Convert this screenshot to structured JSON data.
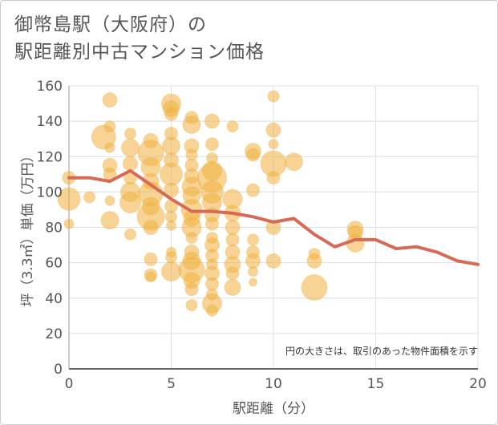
{
  "title_line1": "御幣島駅（大阪府）の",
  "title_line2": "駅距離別中古マンション価格",
  "chart_data": {
    "type": "scatter",
    "xlabel": "駅距離（分）",
    "ylabel": "坪（3.3㎡）単価（万円）",
    "xlim": [
      0,
      20
    ],
    "ylim": [
      0,
      160
    ],
    "x_ticks": [
      "0",
      "5",
      "10",
      "15",
      "20"
    ],
    "y_ticks": [
      "0",
      "20",
      "40",
      "60",
      "80",
      "100",
      "120",
      "140",
      "160"
    ],
    "annotation": "円の大きさは、取引のあった物件面積を示す",
    "grid": true,
    "colors": {
      "bubble": "#f0b040",
      "line": "#d76a55",
      "grid": "#d8e0e8"
    },
    "bubbles": [
      {
        "x": 0,
        "y": 108,
        "s": 8
      },
      {
        "x": 0,
        "y": 96,
        "s": 14
      },
      {
        "x": 0,
        "y": 82,
        "s": 6
      },
      {
        "x": 1,
        "y": 97,
        "s": 7
      },
      {
        "x": 2,
        "y": 152,
        "s": 9
      },
      {
        "x": 2,
        "y": 137,
        "s": 7
      },
      {
        "x": 2,
        "y": 125,
        "s": 6
      },
      {
        "x": 2,
        "y": 115,
        "s": 9
      },
      {
        "x": 2,
        "y": 110,
        "s": 8
      },
      {
        "x": 2,
        "y": 95,
        "s": 6
      },
      {
        "x": 2,
        "y": 84,
        "s": 11
      },
      {
        "x": 1.7,
        "y": 131,
        "s": 15
      },
      {
        "x": 3,
        "y": 133,
        "s": 7
      },
      {
        "x": 3,
        "y": 125,
        "s": 11
      },
      {
        "x": 3,
        "y": 116,
        "s": 9
      },
      {
        "x": 3,
        "y": 108,
        "s": 8
      },
      {
        "x": 3,
        "y": 100,
        "s": 12
      },
      {
        "x": 3,
        "y": 94,
        "s": 13
      },
      {
        "x": 3,
        "y": 76,
        "s": 7
      },
      {
        "x": 4,
        "y": 129,
        "s": 9
      },
      {
        "x": 4,
        "y": 122,
        "s": 16
      },
      {
        "x": 4,
        "y": 114,
        "s": 12
      },
      {
        "x": 4,
        "y": 106,
        "s": 10
      },
      {
        "x": 4,
        "y": 99,
        "s": 15
      },
      {
        "x": 4,
        "y": 92,
        "s": 11
      },
      {
        "x": 4,
        "y": 86,
        "s": 17
      },
      {
        "x": 4,
        "y": 80,
        "s": 9
      },
      {
        "x": 4,
        "y": 62,
        "s": 8
      },
      {
        "x": 4,
        "y": 53,
        "s": 8
      },
      {
        "x": 4,
        "y": 52,
        "s": 6
      },
      {
        "x": 5,
        "y": 150,
        "s": 12
      },
      {
        "x": 5,
        "y": 147,
        "s": 10
      },
      {
        "x": 5,
        "y": 144,
        "s": 8
      },
      {
        "x": 5,
        "y": 133,
        "s": 8
      },
      {
        "x": 5,
        "y": 126,
        "s": 11
      },
      {
        "x": 5,
        "y": 118,
        "s": 9
      },
      {
        "x": 5,
        "y": 110,
        "s": 14
      },
      {
        "x": 5,
        "y": 101,
        "s": 9
      },
      {
        "x": 5,
        "y": 92,
        "s": 8
      },
      {
        "x": 5,
        "y": 86,
        "s": 7
      },
      {
        "x": 5,
        "y": 81,
        "s": 6
      },
      {
        "x": 5,
        "y": 66,
        "s": 6
      },
      {
        "x": 5,
        "y": 63,
        "s": 7
      },
      {
        "x": 5,
        "y": 55,
        "s": 12
      },
      {
        "x": 6,
        "y": 142,
        "s": 8
      },
      {
        "x": 6,
        "y": 138,
        "s": 11
      },
      {
        "x": 6,
        "y": 126,
        "s": 9
      },
      {
        "x": 6,
        "y": 121,
        "s": 7
      },
      {
        "x": 6,
        "y": 115,
        "s": 8
      },
      {
        "x": 6,
        "y": 109,
        "s": 9
      },
      {
        "x": 6,
        "y": 103,
        "s": 12
      },
      {
        "x": 6,
        "y": 98,
        "s": 11
      },
      {
        "x": 6,
        "y": 90,
        "s": 13
      },
      {
        "x": 6,
        "y": 85,
        "s": 10
      },
      {
        "x": 6,
        "y": 80,
        "s": 12
      },
      {
        "x": 6,
        "y": 74,
        "s": 7
      },
      {
        "x": 6,
        "y": 66,
        "s": 9
      },
      {
        "x": 6,
        "y": 61,
        "s": 11
      },
      {
        "x": 6,
        "y": 56,
        "s": 16
      },
      {
        "x": 6,
        "y": 50,
        "s": 10
      },
      {
        "x": 6,
        "y": 45,
        "s": 8
      },
      {
        "x": 6,
        "y": 36,
        "s": 7
      },
      {
        "x": 7,
        "y": 140,
        "s": 9
      },
      {
        "x": 7,
        "y": 127,
        "s": 8
      },
      {
        "x": 7,
        "y": 119,
        "s": 7
      },
      {
        "x": 7,
        "y": 112,
        "s": 12
      },
      {
        "x": 7,
        "y": 108,
        "s": 18
      },
      {
        "x": 7,
        "y": 100,
        "s": 14
      },
      {
        "x": 7,
        "y": 94,
        "s": 12
      },
      {
        "x": 7,
        "y": 87,
        "s": 9
      },
      {
        "x": 7,
        "y": 82,
        "s": 8
      },
      {
        "x": 7,
        "y": 74,
        "s": 7
      },
      {
        "x": 7,
        "y": 70,
        "s": 9
      },
      {
        "x": 7,
        "y": 64,
        "s": 8
      },
      {
        "x": 7,
        "y": 59,
        "s": 7
      },
      {
        "x": 7,
        "y": 54,
        "s": 9
      },
      {
        "x": 7,
        "y": 48,
        "s": 8
      },
      {
        "x": 7,
        "y": 42,
        "s": 7
      },
      {
        "x": 7,
        "y": 37,
        "s": 12
      },
      {
        "x": 7,
        "y": 33,
        "s": 7
      },
      {
        "x": 8,
        "y": 137,
        "s": 7
      },
      {
        "x": 8,
        "y": 96,
        "s": 12
      },
      {
        "x": 8,
        "y": 88,
        "s": 10
      },
      {
        "x": 8,
        "y": 80,
        "s": 9
      },
      {
        "x": 8,
        "y": 73,
        "s": 8
      },
      {
        "x": 8,
        "y": 66,
        "s": 9
      },
      {
        "x": 8,
        "y": 59,
        "s": 10
      },
      {
        "x": 8,
        "y": 54,
        "s": 8
      },
      {
        "x": 8,
        "y": 46,
        "s": 10
      },
      {
        "x": 9,
        "y": 123,
        "s": 10
      },
      {
        "x": 9,
        "y": 121,
        "s": 8
      },
      {
        "x": 9,
        "y": 101,
        "s": 8
      },
      {
        "x": 9,
        "y": 73,
        "s": 7
      },
      {
        "x": 9,
        "y": 66,
        "s": 8
      },
      {
        "x": 9,
        "y": 61,
        "s": 9
      },
      {
        "x": 9,
        "y": 55,
        "s": 6
      },
      {
        "x": 9,
        "y": 49,
        "s": 5
      },
      {
        "x": 10,
        "y": 154,
        "s": 7
      },
      {
        "x": 10,
        "y": 135,
        "s": 9
      },
      {
        "x": 10,
        "y": 127,
        "s": 6
      },
      {
        "x": 10,
        "y": 116,
        "s": 16
      },
      {
        "x": 10,
        "y": 108,
        "s": 8
      },
      {
        "x": 10,
        "y": 80,
        "s": 9
      },
      {
        "x": 10,
        "y": 61,
        "s": 9
      },
      {
        "x": 11,
        "y": 117,
        "s": 11
      },
      {
        "x": 12,
        "y": 65,
        "s": 7
      },
      {
        "x": 12,
        "y": 61,
        "s": 9
      },
      {
        "x": 12,
        "y": 46,
        "s": 16
      },
      {
        "x": 14,
        "y": 79,
        "s": 10
      },
      {
        "x": 14,
        "y": 77,
        "s": 9
      },
      {
        "x": 14,
        "y": 71,
        "s": 11
      }
    ],
    "line": [
      {
        "x": 0,
        "y": 108
      },
      {
        "x": 1,
        "y": 108
      },
      {
        "x": 2,
        "y": 106
      },
      {
        "x": 3,
        "y": 112
      },
      {
        "x": 4,
        "y": 104
      },
      {
        "x": 5,
        "y": 96
      },
      {
        "x": 6,
        "y": 89
      },
      {
        "x": 7,
        "y": 89
      },
      {
        "x": 8,
        "y": 88
      },
      {
        "x": 9,
        "y": 86
      },
      {
        "x": 10,
        "y": 83
      },
      {
        "x": 11,
        "y": 85
      },
      {
        "x": 12,
        "y": 76
      },
      {
        "x": 13,
        "y": 69
      },
      {
        "x": 14,
        "y": 73
      },
      {
        "x": 15,
        "y": 73
      },
      {
        "x": 16,
        "y": 68
      },
      {
        "x": 17,
        "y": 69
      },
      {
        "x": 18,
        "y": 66
      },
      {
        "x": 19,
        "y": 61
      },
      {
        "x": 20,
        "y": 59
      }
    ]
  }
}
